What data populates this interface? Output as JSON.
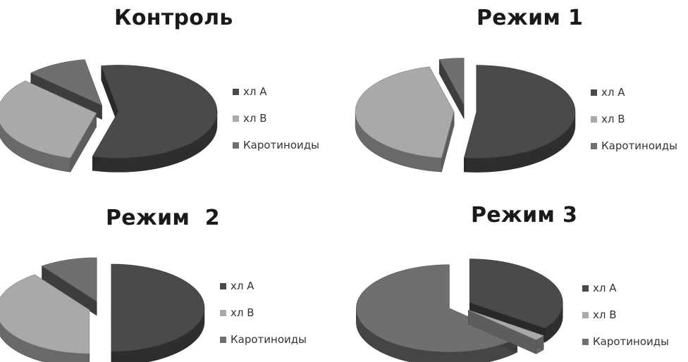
{
  "colors": {
    "xl_a": "#4a4a4a",
    "xl_b": "#a9a9a9",
    "carot": "#6f6f6f"
  },
  "chart_data": [
    {
      "type": "pie",
      "title": "Контроль",
      "categories": [
        "хл А",
        "хл В",
        "Каротиноиды"
      ],
      "values": [
        57,
        33,
        10
      ],
      "legend": "right"
    },
    {
      "type": "pie",
      "title": "Режим 1",
      "categories": [
        "хл А",
        "хл В",
        "Каротиноиды"
      ],
      "values": [
        52,
        44,
        4
      ],
      "legend": "right"
    },
    {
      "type": "pie",
      "title": "Режим  2",
      "categories": [
        "хл А",
        "хл В",
        "Каротиноиды"
      ],
      "values": [
        50,
        40,
        10
      ],
      "legend": "right"
    },
    {
      "type": "pie",
      "title": "Режим 3",
      "categories": [
        "хл А",
        "хл В",
        "Каротиноиды"
      ],
      "values": [
        35,
        2,
        63
      ],
      "legend": "right"
    }
  ]
}
